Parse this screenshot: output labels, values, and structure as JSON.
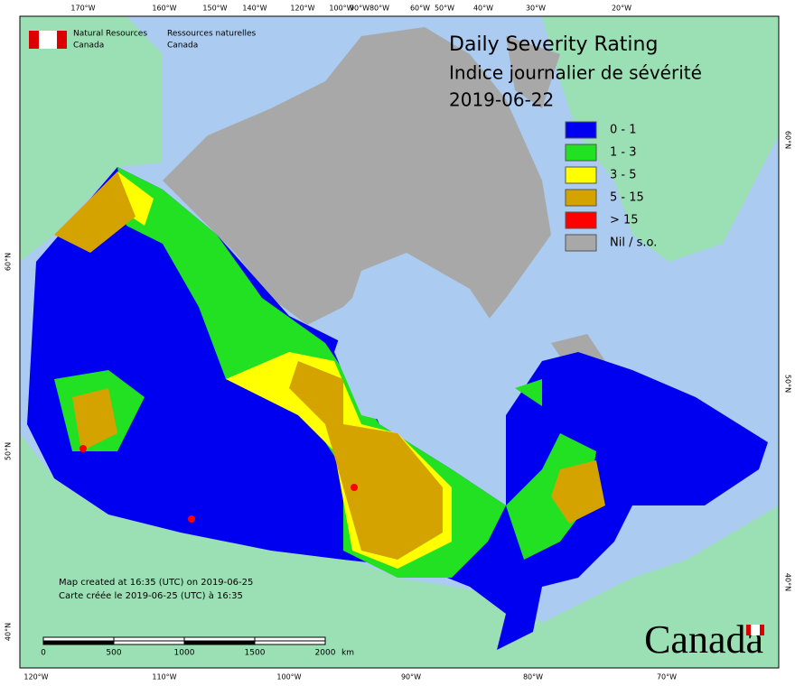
{
  "header": {
    "agency_en": "Natural Resources",
    "agency_en_2": "Canada",
    "agency_fr": "Ressources naturelles",
    "agency_fr_2": "Canada"
  },
  "title": {
    "line1": "Daily Severity Rating",
    "line2": "Indice journalier de sévérité",
    "date": "2019-06-22"
  },
  "legend": [
    {
      "label": "0 - 1",
      "color": "#0000f0"
    },
    {
      "label": "1 - 3",
      "color": "#22e022"
    },
    {
      "label": "3 - 5",
      "color": "#ffff00"
    },
    {
      "label": "5 - 15",
      "color": "#d4a300"
    },
    {
      "label": "> 15",
      "color": "#ff0000"
    },
    {
      "label": "Nil / s.o.",
      "color": "#a8a8a8"
    }
  ],
  "graticule": {
    "top": [
      "170°W",
      "160°W",
      "150°W",
      "140°W",
      "120°W",
      "100°W",
      "90°W",
      "80°W",
      "60°W",
      "50°W",
      "40°W",
      "30°W",
      "20°W"
    ],
    "bottom": [
      "120°W",
      "110°W",
      "100°W",
      "90°W",
      "80°W",
      "70°W"
    ],
    "left": [
      "60°N",
      "50°N",
      "40°N"
    ],
    "right": [
      "60°N",
      "50°N",
      "40°N"
    ]
  },
  "scale_bar": {
    "labels": [
      "0",
      "500",
      "1000",
      "1500",
      "2000"
    ],
    "unit": "km"
  },
  "credits": [
    "Map created at 16:35 (UTC) on 2019-06-25",
    "Carte créée le 2019-06-25 (UTC) à 16:35"
  ],
  "wordmark": "Canada"
}
